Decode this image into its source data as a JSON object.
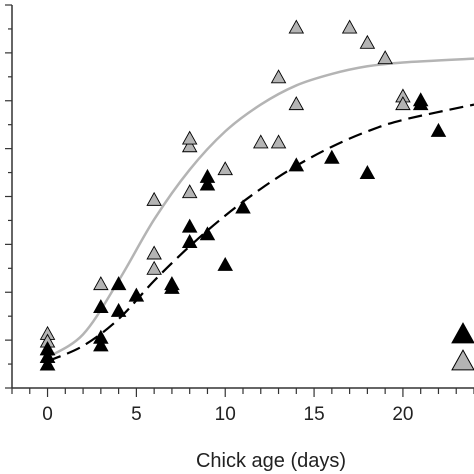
{
  "chart_data": {
    "type": "scatter",
    "xlabel": "Chick age (days)",
    "ylabel": "",
    "title": "",
    "xlim": [
      -2,
      24
    ],
    "ylim": [
      0,
      1
    ],
    "x_ticks": [
      0,
      5,
      10,
      15,
      20
    ],
    "x_tick_labels": [
      "0",
      "5",
      "10",
      "15",
      "20"
    ],
    "series": [
      {
        "marker": "triangle",
        "color": "#b4b4b4",
        "points": [
          {
            "x": 0,
            "y": 0.14
          },
          {
            "x": 0,
            "y": 0.12
          },
          {
            "x": 0,
            "y": 0.1
          },
          {
            "x": 0,
            "y": 0.08
          },
          {
            "x": 0,
            "y": 0.06
          },
          {
            "x": 3,
            "y": 0.27
          },
          {
            "x": 6,
            "y": 0.31
          },
          {
            "x": 6,
            "y": 0.35
          },
          {
            "x": 6,
            "y": 0.49
          },
          {
            "x": 8,
            "y": 0.63
          },
          {
            "x": 8,
            "y": 0.65
          },
          {
            "x": 8,
            "y": 0.51
          },
          {
            "x": 10,
            "y": 0.57
          },
          {
            "x": 12,
            "y": 0.64
          },
          {
            "x": 13,
            "y": 0.64
          },
          {
            "x": 13,
            "y": 0.81
          },
          {
            "x": 14,
            "y": 0.74
          },
          {
            "x": 14,
            "y": 0.94
          },
          {
            "x": 17,
            "y": 0.94
          },
          {
            "x": 18,
            "y": 0.9
          },
          {
            "x": 19,
            "y": 0.86
          },
          {
            "x": 20,
            "y": 0.76
          },
          {
            "x": 20,
            "y": 0.74
          }
        ],
        "fit": [
          {
            "x": 0,
            "y": 0.08
          },
          {
            "x": 2,
            "y": 0.14
          },
          {
            "x": 4,
            "y": 0.28
          },
          {
            "x": 6,
            "y": 0.44
          },
          {
            "x": 8,
            "y": 0.57
          },
          {
            "x": 10,
            "y": 0.67
          },
          {
            "x": 12,
            "y": 0.74
          },
          {
            "x": 14,
            "y": 0.79
          },
          {
            "x": 16,
            "y": 0.82
          },
          {
            "x": 18,
            "y": 0.84
          },
          {
            "x": 20,
            "y": 0.85
          },
          {
            "x": 24,
            "y": 0.86
          }
        ]
      },
      {
        "marker": "triangle",
        "color": "#000000",
        "points": [
          {
            "x": 0,
            "y": 0.1
          },
          {
            "x": 0,
            "y": 0.08
          },
          {
            "x": 0,
            "y": 0.06
          },
          {
            "x": 3,
            "y": 0.11
          },
          {
            "x": 3,
            "y": 0.13
          },
          {
            "x": 3,
            "y": 0.21
          },
          {
            "x": 4,
            "y": 0.2
          },
          {
            "x": 4,
            "y": 0.27
          },
          {
            "x": 5,
            "y": 0.24
          },
          {
            "x": 7,
            "y": 0.26
          },
          {
            "x": 7,
            "y": 0.27
          },
          {
            "x": 8,
            "y": 0.38
          },
          {
            "x": 8,
            "y": 0.42
          },
          {
            "x": 9,
            "y": 0.4
          },
          {
            "x": 9,
            "y": 0.53
          },
          {
            "x": 9,
            "y": 0.55
          },
          {
            "x": 10,
            "y": 0.32
          },
          {
            "x": 11,
            "y": 0.47
          },
          {
            "x": 14,
            "y": 0.58
          },
          {
            "x": 16,
            "y": 0.6
          },
          {
            "x": 18,
            "y": 0.56
          },
          {
            "x": 21,
            "y": 0.75
          },
          {
            "x": 21,
            "y": 0.74
          },
          {
            "x": 22,
            "y": 0.67
          }
        ],
        "fit": [
          {
            "x": 0,
            "y": 0.07
          },
          {
            "x": 2,
            "y": 0.11
          },
          {
            "x": 4,
            "y": 0.18
          },
          {
            "x": 6,
            "y": 0.28
          },
          {
            "x": 8,
            "y": 0.37
          },
          {
            "x": 10,
            "y": 0.45
          },
          {
            "x": 12,
            "y": 0.52
          },
          {
            "x": 14,
            "y": 0.58
          },
          {
            "x": 16,
            "y": 0.63
          },
          {
            "x": 18,
            "y": 0.67
          },
          {
            "x": 20,
            "y": 0.7
          },
          {
            "x": 24,
            "y": 0.74
          }
        ]
      }
    ],
    "legend": {
      "placement": "bottom-right",
      "entries": [
        {
          "marker": "triangle",
          "color": "#000000"
        },
        {
          "marker": "triangle",
          "color": "#b4b4b4"
        }
      ]
    }
  }
}
